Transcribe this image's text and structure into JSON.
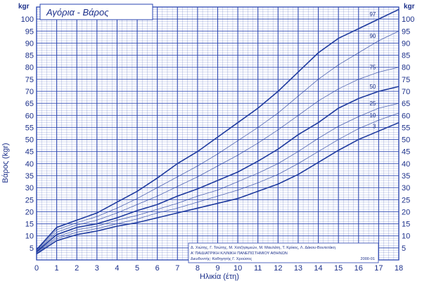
{
  "chart_data": {
    "type": "line",
    "title": "Αγόρια - Βάρος",
    "xlabel": "Ηλικία (έτη)",
    "ylabel": "Βάρος (kgr)",
    "y_unit": "kgr",
    "xlim": [
      0,
      18
    ],
    "ylim": [
      0,
      105
    ],
    "x_ticks": [
      "0",
      "1",
      "2",
      "3",
      "4",
      "5",
      "6",
      "7",
      "8",
      "9",
      "10",
      "11",
      "12",
      "13",
      "14",
      "15",
      "16",
      "17",
      "18"
    ],
    "y_ticks": [
      "5",
      "10",
      "15",
      "20",
      "25",
      "30",
      "35",
      "40",
      "45",
      "50",
      "55",
      "60",
      "65",
      "70",
      "75",
      "80",
      "85",
      "90",
      "95",
      "100"
    ],
    "grid": true,
    "x": [
      0,
      1,
      2,
      3,
      4,
      5,
      6,
      7,
      8,
      9,
      10,
      11,
      12,
      13,
      14,
      15,
      16,
      17,
      18
    ],
    "series": [
      {
        "name": "97",
        "values": [
          4.3,
          13.5,
          16.5,
          19.5,
          24,
          28.5,
          34,
          40,
          45,
          51,
          57,
          63,
          70,
          78,
          86,
          92,
          96,
          100,
          104
        ]
      },
      {
        "name": "90",
        "values": [
          4.0,
          12.5,
          15.5,
          18,
          21.5,
          25.5,
          30,
          34.5,
          39,
          44,
          49.5,
          55,
          61,
          68,
          75,
          81,
          86,
          91,
          95
        ]
      },
      {
        "name": "75",
        "values": [
          3.7,
          11.5,
          14.5,
          16.5,
          19.5,
          23,
          26.5,
          30.5,
          34.5,
          39,
          43.5,
          48.5,
          54,
          60,
          66,
          71,
          75,
          78,
          80
        ]
      },
      {
        "name": "50",
        "values": [
          3.4,
          10.5,
          13.5,
          15,
          17.5,
          20.5,
          23,
          26.5,
          29.5,
          33,
          36.5,
          41,
          46,
          52,
          57,
          63,
          67,
          70,
          72
        ]
      },
      {
        "name": "25",
        "values": [
          3.1,
          9.5,
          12.5,
          14,
          16.5,
          18.5,
          21,
          23.5,
          26.5,
          29,
          32.5,
          36,
          40,
          45,
          50.5,
          55.5,
          59.5,
          63,
          65
        ]
      },
      {
        "name": "10",
        "values": [
          2.8,
          8.8,
          11.5,
          13,
          15,
          17,
          19.5,
          21.5,
          24,
          26.5,
          29,
          32,
          35.5,
          40,
          45,
          50,
          54.5,
          58,
          61
        ]
      },
      {
        "name": "3",
        "values": [
          2.5,
          8,
          10.5,
          12,
          14,
          15.5,
          17.5,
          19.5,
          21.5,
          23.5,
          25.5,
          28.5,
          31.5,
          35.5,
          40.5,
          45.5,
          50,
          53.5,
          57
        ]
      }
    ],
    "curve_color": "#1e3a9e",
    "grid_color": "#2a45b0"
  },
  "credits": {
    "line1": "Δ. Χιώτης, Γ. Τσώτης, Μ. Χατζησιμεών, Μ. Μαυλάτη, Τ. Κρίκος, Λ. Δάκου-Βουτετάκη",
    "line2": "Α' ΠΑΙΔΙΑΤΡΙΚΗ ΚΛΙΝΙΚΗ ΠΑΝΕΠΙΣΤΗΜΙΟΥ ΑΘΗΝΩΝ",
    "line3": "Διευθυντής: Καθηγητής Γ. Χρούσος",
    "code": "2000-01"
  }
}
